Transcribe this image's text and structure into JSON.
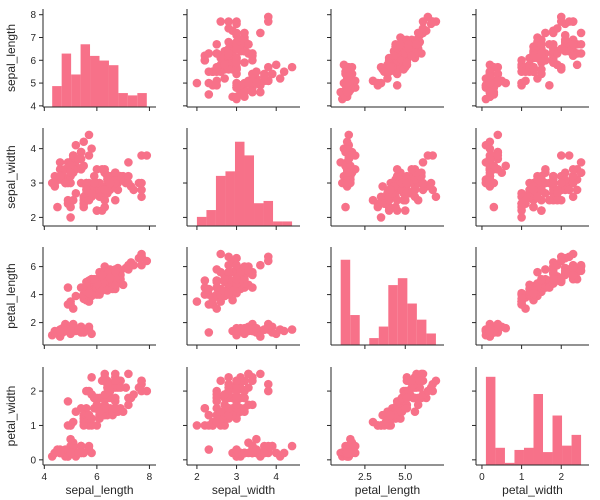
{
  "chart_data": {
    "type": "scatter",
    "layout": "pairplot",
    "diagonal": "histogram",
    "bins": 10,
    "color": "#f77189",
    "grid": false,
    "variables": [
      "sepal_length",
      "sepal_width",
      "petal_length",
      "petal_width"
    ],
    "limits": {
      "sepal_length": [
        3.95,
        8.25
      ],
      "sepal_width": [
        1.75,
        4.6
      ],
      "petal_length": [
        0.4,
        7.4
      ],
      "petal_width": [
        -0.15,
        2.7
      ]
    },
    "y_ticks": {
      "sepal_length": [
        "4",
        "5",
        "6",
        "7",
        "8"
      ],
      "sepal_width": [
        "2",
        "3",
        "4"
      ],
      "petal_length": [
        "2",
        "4",
        "6"
      ],
      "petal_width": [
        "0",
        "1",
        "2"
      ]
    },
    "x_ticks": {
      "sepal_length": [
        "4",
        "6",
        "8"
      ],
      "sepal_width": [
        "2",
        "3",
        "4"
      ],
      "petal_length": [
        "2.5",
        "5.0"
      ],
      "petal_width": [
        "0",
        "1",
        "2"
      ]
    },
    "rows": [
      [
        5.1,
        3.5,
        1.4,
        0.2
      ],
      [
        4.9,
        3.0,
        1.4,
        0.2
      ],
      [
        4.7,
        3.2,
        1.3,
        0.2
      ],
      [
        4.6,
        3.1,
        1.5,
        0.2
      ],
      [
        5.0,
        3.6,
        1.4,
        0.2
      ],
      [
        5.4,
        3.9,
        1.7,
        0.4
      ],
      [
        4.6,
        3.4,
        1.4,
        0.3
      ],
      [
        5.0,
        3.4,
        1.5,
        0.2
      ],
      [
        4.4,
        2.9,
        1.4,
        0.2
      ],
      [
        4.9,
        3.1,
        1.5,
        0.1
      ],
      [
        5.4,
        3.7,
        1.5,
        0.2
      ],
      [
        4.8,
        3.4,
        1.6,
        0.2
      ],
      [
        4.8,
        3.0,
        1.4,
        0.1
      ],
      [
        4.3,
        3.0,
        1.1,
        0.1
      ],
      [
        5.8,
        4.0,
        1.2,
        0.2
      ],
      [
        5.7,
        4.4,
        1.5,
        0.4
      ],
      [
        5.4,
        3.9,
        1.3,
        0.4
      ],
      [
        5.1,
        3.5,
        1.4,
        0.3
      ],
      [
        5.7,
        3.8,
        1.7,
        0.3
      ],
      [
        5.1,
        3.8,
        1.5,
        0.3
      ],
      [
        5.4,
        3.4,
        1.7,
        0.2
      ],
      [
        5.1,
        3.7,
        1.5,
        0.4
      ],
      [
        4.6,
        3.6,
        1.0,
        0.2
      ],
      [
        5.1,
        3.3,
        1.7,
        0.5
      ],
      [
        4.8,
        3.4,
        1.9,
        0.2
      ],
      [
        5.0,
        3.0,
        1.6,
        0.2
      ],
      [
        5.0,
        3.4,
        1.6,
        0.4
      ],
      [
        5.2,
        3.5,
        1.5,
        0.2
      ],
      [
        5.2,
        3.4,
        1.4,
        0.2
      ],
      [
        4.7,
        3.2,
        1.6,
        0.2
      ],
      [
        4.8,
        3.1,
        1.6,
        0.2
      ],
      [
        5.4,
        3.4,
        1.5,
        0.4
      ],
      [
        5.2,
        4.1,
        1.5,
        0.1
      ],
      [
        5.5,
        4.2,
        1.4,
        0.2
      ],
      [
        4.9,
        3.1,
        1.5,
        0.2
      ],
      [
        5.0,
        3.2,
        1.2,
        0.2
      ],
      [
        5.5,
        3.5,
        1.3,
        0.2
      ],
      [
        4.9,
        3.6,
        1.4,
        0.1
      ],
      [
        4.4,
        3.0,
        1.3,
        0.2
      ],
      [
        5.1,
        3.4,
        1.5,
        0.2
      ],
      [
        5.0,
        3.5,
        1.3,
        0.3
      ],
      [
        4.5,
        2.3,
        1.3,
        0.3
      ],
      [
        4.4,
        3.2,
        1.3,
        0.2
      ],
      [
        5.0,
        3.5,
        1.6,
        0.6
      ],
      [
        5.1,
        3.8,
        1.9,
        0.4
      ],
      [
        4.8,
        3.0,
        1.4,
        0.3
      ],
      [
        5.1,
        3.8,
        1.6,
        0.2
      ],
      [
        4.6,
        3.2,
        1.4,
        0.2
      ],
      [
        5.3,
        3.7,
        1.5,
        0.2
      ],
      [
        5.0,
        3.3,
        1.4,
        0.2
      ],
      [
        7.0,
        3.2,
        4.7,
        1.4
      ],
      [
        6.4,
        3.2,
        4.5,
        1.5
      ],
      [
        6.9,
        3.1,
        4.9,
        1.5
      ],
      [
        5.5,
        2.3,
        4.0,
        1.3
      ],
      [
        6.5,
        2.8,
        4.6,
        1.5
      ],
      [
        5.7,
        2.8,
        4.5,
        1.3
      ],
      [
        6.3,
        3.3,
        4.7,
        1.6
      ],
      [
        4.9,
        2.4,
        3.3,
        1.0
      ],
      [
        6.6,
        2.9,
        4.6,
        1.3
      ],
      [
        5.2,
        2.7,
        3.9,
        1.4
      ],
      [
        5.0,
        2.0,
        3.5,
        1.0
      ],
      [
        5.9,
        3.0,
        4.2,
        1.5
      ],
      [
        6.0,
        2.2,
        4.0,
        1.0
      ],
      [
        6.1,
        2.9,
        4.7,
        1.4
      ],
      [
        5.6,
        2.9,
        3.6,
        1.3
      ],
      [
        6.7,
        3.1,
        4.4,
        1.4
      ],
      [
        5.6,
        3.0,
        4.5,
        1.5
      ],
      [
        5.8,
        2.7,
        4.1,
        1.0
      ],
      [
        6.2,
        2.2,
        4.5,
        1.5
      ],
      [
        5.6,
        2.5,
        3.9,
        1.1
      ],
      [
        5.9,
        3.2,
        4.8,
        1.8
      ],
      [
        6.1,
        2.8,
        4.0,
        1.3
      ],
      [
        6.3,
        2.5,
        4.9,
        1.5
      ],
      [
        6.1,
        2.8,
        4.7,
        1.2
      ],
      [
        6.4,
        2.9,
        4.3,
        1.3
      ],
      [
        6.6,
        3.0,
        4.4,
        1.4
      ],
      [
        6.8,
        2.8,
        4.8,
        1.4
      ],
      [
        6.7,
        3.0,
        5.0,
        1.7
      ],
      [
        6.0,
        2.9,
        4.5,
        1.5
      ],
      [
        5.7,
        2.6,
        3.5,
        1.0
      ],
      [
        5.5,
        2.4,
        3.8,
        1.1
      ],
      [
        5.5,
        2.4,
        3.7,
        1.0
      ],
      [
        5.8,
        2.7,
        3.9,
        1.2
      ],
      [
        6.0,
        2.7,
        5.1,
        1.6
      ],
      [
        5.4,
        3.0,
        4.5,
        1.5
      ],
      [
        6.0,
        3.4,
        4.5,
        1.6
      ],
      [
        6.7,
        3.1,
        4.7,
        1.5
      ],
      [
        6.3,
        2.3,
        4.4,
        1.3
      ],
      [
        5.6,
        3.0,
        4.1,
        1.3
      ],
      [
        5.5,
        2.5,
        4.0,
        1.3
      ],
      [
        5.5,
        2.6,
        4.4,
        1.2
      ],
      [
        6.1,
        3.0,
        4.6,
        1.4
      ],
      [
        5.8,
        2.6,
        4.0,
        1.2
      ],
      [
        5.0,
        2.3,
        3.3,
        1.0
      ],
      [
        5.6,
        2.7,
        4.2,
        1.3
      ],
      [
        5.7,
        3.0,
        4.2,
        1.2
      ],
      [
        5.7,
        2.9,
        4.2,
        1.3
      ],
      [
        6.2,
        2.9,
        4.3,
        1.3
      ],
      [
        5.1,
        2.5,
        3.0,
        1.1
      ],
      [
        5.7,
        2.8,
        4.1,
        1.3
      ],
      [
        6.3,
        3.3,
        6.0,
        2.5
      ],
      [
        5.8,
        2.7,
        5.1,
        1.9
      ],
      [
        7.1,
        3.0,
        5.9,
        2.1
      ],
      [
        6.3,
        2.9,
        5.6,
        1.8
      ],
      [
        6.5,
        3.0,
        5.8,
        2.2
      ],
      [
        7.6,
        3.0,
        6.6,
        2.1
      ],
      [
        4.9,
        2.5,
        4.5,
        1.7
      ],
      [
        7.3,
        2.9,
        6.3,
        1.8
      ],
      [
        6.7,
        2.5,
        5.8,
        1.8
      ],
      [
        7.2,
        3.6,
        6.1,
        2.5
      ],
      [
        6.5,
        3.2,
        5.1,
        2.0
      ],
      [
        6.4,
        2.7,
        5.3,
        1.9
      ],
      [
        6.8,
        3.0,
        5.5,
        2.1
      ],
      [
        5.7,
        2.5,
        5.0,
        2.0
      ],
      [
        5.8,
        2.8,
        5.1,
        2.4
      ],
      [
        6.4,
        3.2,
        5.3,
        2.3
      ],
      [
        6.5,
        3.0,
        5.5,
        1.8
      ],
      [
        7.7,
        3.8,
        6.7,
        2.2
      ],
      [
        7.7,
        2.6,
        6.9,
        2.3
      ],
      [
        6.0,
        2.2,
        5.0,
        1.5
      ],
      [
        6.9,
        3.2,
        5.7,
        2.3
      ],
      [
        5.6,
        2.8,
        4.9,
        2.0
      ],
      [
        7.7,
        2.8,
        6.7,
        2.0
      ],
      [
        6.3,
        2.7,
        4.9,
        1.8
      ],
      [
        6.7,
        3.3,
        5.7,
        2.1
      ],
      [
        7.2,
        3.2,
        6.0,
        1.8
      ],
      [
        6.2,
        2.8,
        4.8,
        1.8
      ],
      [
        6.1,
        3.0,
        4.9,
        1.8
      ],
      [
        6.4,
        2.8,
        5.6,
        2.1
      ],
      [
        7.2,
        3.0,
        5.8,
        1.6
      ],
      [
        7.4,
        2.8,
        6.1,
        1.9
      ],
      [
        7.9,
        3.8,
        6.4,
        2.0
      ],
      [
        6.4,
        2.8,
        5.6,
        2.2
      ],
      [
        6.3,
        2.8,
        5.1,
        1.5
      ],
      [
        6.1,
        2.6,
        5.6,
        1.4
      ],
      [
        7.7,
        3.0,
        6.1,
        2.3
      ],
      [
        6.3,
        3.4,
        5.6,
        2.4
      ],
      [
        6.4,
        3.1,
        5.5,
        1.8
      ],
      [
        6.0,
        3.0,
        4.8,
        1.8
      ],
      [
        6.9,
        3.1,
        5.4,
        2.1
      ],
      [
        6.7,
        3.1,
        5.6,
        2.4
      ],
      [
        6.9,
        3.1,
        5.1,
        2.3
      ],
      [
        5.8,
        2.7,
        5.1,
        1.9
      ],
      [
        6.8,
        3.2,
        5.9,
        2.3
      ],
      [
        6.7,
        3.3,
        5.7,
        2.5
      ],
      [
        6.7,
        3.0,
        5.2,
        2.3
      ],
      [
        6.3,
        2.5,
        5.0,
        1.9
      ],
      [
        6.5,
        3.0,
        5.2,
        2.0
      ],
      [
        6.2,
        3.4,
        5.4,
        2.3
      ],
      [
        5.9,
        3.0,
        5.1,
        1.8
      ]
    ]
  }
}
